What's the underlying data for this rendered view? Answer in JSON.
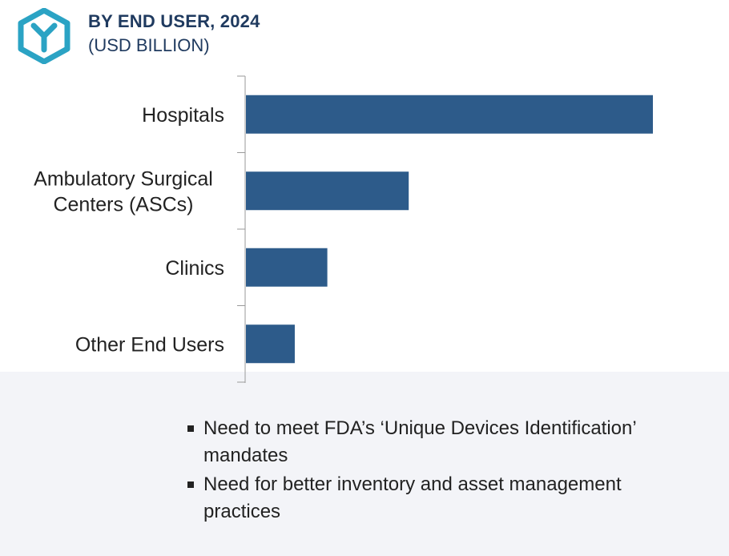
{
  "header": {
    "title": "BY END USER, 2024",
    "subtitle": "(USD BILLION)"
  },
  "chart_data": {
    "type": "bar",
    "orientation": "horizontal",
    "title": "BY END USER, 2024",
    "subtitle": "(USD BILLION)",
    "categories": [
      [
        "Hospitals"
      ],
      [
        "Ambulatory Surgical",
        "Centers (ASCs)"
      ],
      [
        "Clinics"
      ],
      [
        "Other End Users"
      ]
    ],
    "values": [
      100,
      40,
      20,
      12
    ],
    "value_scale": "relative (no axis values printed)",
    "xlim": [
      0,
      100
    ],
    "grid": false,
    "legend": "none",
    "bar_color": "#2d5b8a"
  },
  "drivers": {
    "items": [
      "Need to meet FDA’s ‘Unique Devices Identification’ mandates",
      "Need for better inventory and asset management practices"
    ]
  },
  "colors": {
    "title": "#1f3a5f",
    "bar": "#2d5b8a",
    "logo": "#2ba3c4",
    "footer_band": "#f3f4f8"
  },
  "icons": {
    "logo": "cube-y-logo-icon"
  }
}
